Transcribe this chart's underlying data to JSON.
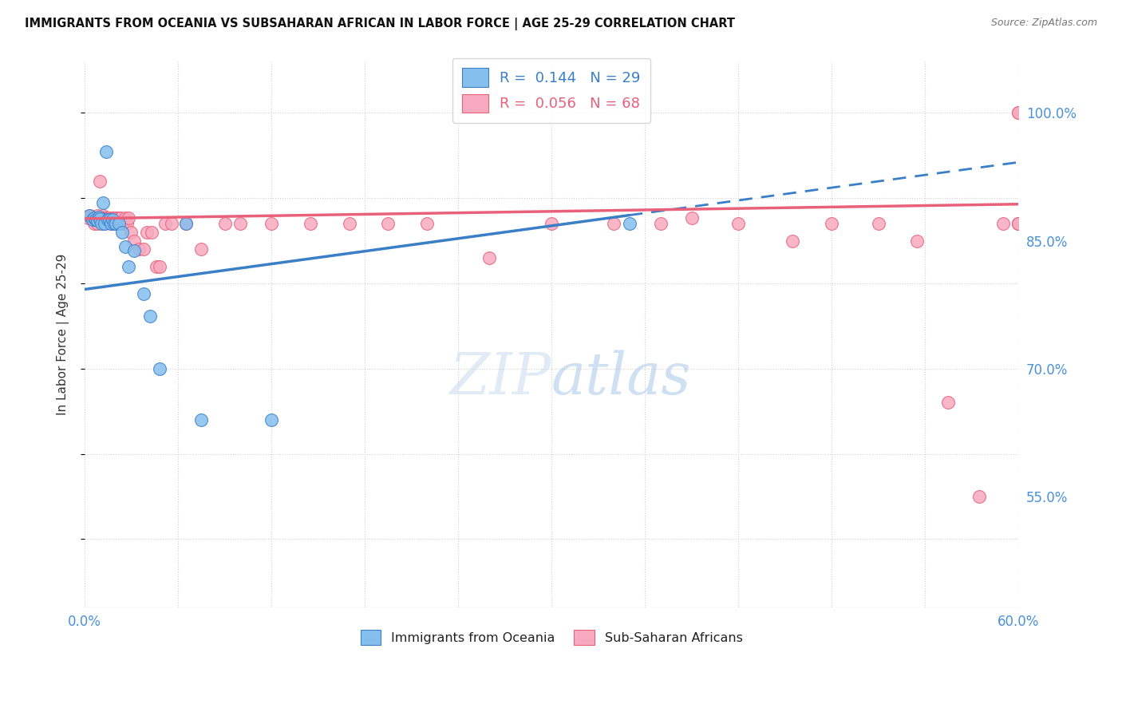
{
  "title": "IMMIGRANTS FROM OCEANIA VS SUBSAHARAN AFRICAN IN LABOR FORCE | AGE 25-29 CORRELATION CHART",
  "source": "Source: ZipAtlas.com",
  "ylabel": "In Labor Force | Age 25-29",
  "xlim": [
    0.0,
    0.6
  ],
  "ylim": [
    0.42,
    1.06
  ],
  "yticks": [
    0.55,
    0.7,
    0.85,
    1.0
  ],
  "yticklabels": [
    "55.0%",
    "70.0%",
    "85.0%",
    "100.0%"
  ],
  "xtick_positions": [
    0.0,
    0.06,
    0.12,
    0.18,
    0.24,
    0.3,
    0.36,
    0.42,
    0.48,
    0.54,
    0.6
  ],
  "r_oceania": 0.144,
  "n_oceania": 29,
  "r_subsaharan": 0.056,
  "n_subsaharan": 68,
  "oceania_color": "#85BFEE",
  "subsaharan_color": "#F7AABF",
  "trend_oceania_color": "#3B7EC8",
  "trend_subsaharan_color": "#E8607A",
  "oceania_x": [
    0.003,
    0.005,
    0.006,
    0.007,
    0.008,
    0.009,
    0.01,
    0.011,
    0.012,
    0.013,
    0.014,
    0.015,
    0.016,
    0.017,
    0.018,
    0.019,
    0.02,
    0.022,
    0.024,
    0.026,
    0.028,
    0.032,
    0.038,
    0.042,
    0.048,
    0.065,
    0.075,
    0.12,
    0.35
  ],
  "oceania_y": [
    0.88,
    0.875,
    0.877,
    0.875,
    0.874,
    0.878,
    0.876,
    0.87,
    0.895,
    0.87,
    0.955,
    0.875,
    0.875,
    0.87,
    0.875,
    0.87,
    0.87,
    0.87,
    0.86,
    0.843,
    0.82,
    0.838,
    0.788,
    0.762,
    0.7,
    0.87,
    0.64,
    0.64,
    0.87
  ],
  "subsaharan_x": [
    0.002,
    0.003,
    0.004,
    0.005,
    0.006,
    0.006,
    0.007,
    0.008,
    0.008,
    0.009,
    0.01,
    0.01,
    0.011,
    0.012,
    0.013,
    0.013,
    0.014,
    0.015,
    0.016,
    0.017,
    0.018,
    0.019,
    0.02,
    0.021,
    0.022,
    0.023,
    0.024,
    0.025,
    0.026,
    0.027,
    0.028,
    0.03,
    0.032,
    0.035,
    0.038,
    0.04,
    0.043,
    0.046,
    0.048,
    0.052,
    0.056,
    0.065,
    0.075,
    0.09,
    0.1,
    0.12,
    0.145,
    0.17,
    0.195,
    0.22,
    0.26,
    0.3,
    0.34,
    0.37,
    0.39,
    0.42,
    0.455,
    0.48,
    0.51,
    0.535,
    0.555,
    0.575,
    0.59,
    0.6,
    0.6,
    0.6,
    0.6,
    0.6
  ],
  "subsaharan_y": [
    0.877,
    0.88,
    0.877,
    0.877,
    0.878,
    0.87,
    0.877,
    0.88,
    0.87,
    0.877,
    0.92,
    0.877,
    0.877,
    0.88,
    0.877,
    0.87,
    0.877,
    0.877,
    0.877,
    0.87,
    0.877,
    0.877,
    0.877,
    0.87,
    0.877,
    0.877,
    0.87,
    0.87,
    0.877,
    0.87,
    0.877,
    0.86,
    0.85,
    0.84,
    0.84,
    0.86,
    0.86,
    0.82,
    0.82,
    0.87,
    0.87,
    0.87,
    0.84,
    0.87,
    0.87,
    0.87,
    0.87,
    0.87,
    0.87,
    0.87,
    0.83,
    0.87,
    0.87,
    0.87,
    0.877,
    0.87,
    0.85,
    0.87,
    0.87,
    0.85,
    0.66,
    0.55,
    0.87,
    1.0,
    1.0,
    0.87,
    0.87,
    0.87
  ],
  "trend_oceania_x0": 0.0,
  "trend_oceania_y0": 0.793,
  "trend_oceania_x1": 0.35,
  "trend_oceania_y1": 0.88,
  "trend_oceania_dash_x0": 0.35,
  "trend_oceania_dash_x1": 0.6,
  "trend_subsaharan_x0": 0.0,
  "trend_subsaharan_y0": 0.876,
  "trend_subsaharan_x1": 0.6,
  "trend_subsaharan_y1": 0.893
}
